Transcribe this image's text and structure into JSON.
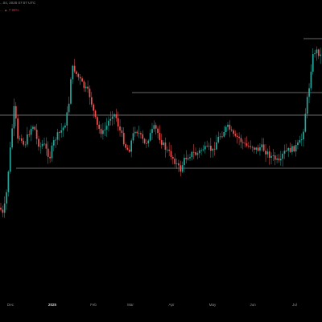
{
  "header": {
    "date_line": "...04, 2025 07:07 UTC",
    "change_line": "... ▲ 7.96%"
  },
  "colors": {
    "background": "#000000",
    "up": "#26a69a",
    "down": "#ef5350",
    "level_line": "#8c8c8c",
    "axis_text": "#8f8f8f"
  },
  "x_axis": {
    "labels": [
      {
        "text": "Dec",
        "bold": false
      },
      {
        "text": "2025",
        "bold": true
      },
      {
        "text": "Feb",
        "bold": false
      },
      {
        "text": "Mar",
        "bold": false
      },
      {
        "text": "Apr",
        "bold": false
      },
      {
        "text": "May",
        "bold": false
      },
      {
        "text": "Jun",
        "bold": false
      },
      {
        "text": "Jul",
        "bold": false
      }
    ]
  },
  "horizontal_levels": {
    "count": 4
  }
}
